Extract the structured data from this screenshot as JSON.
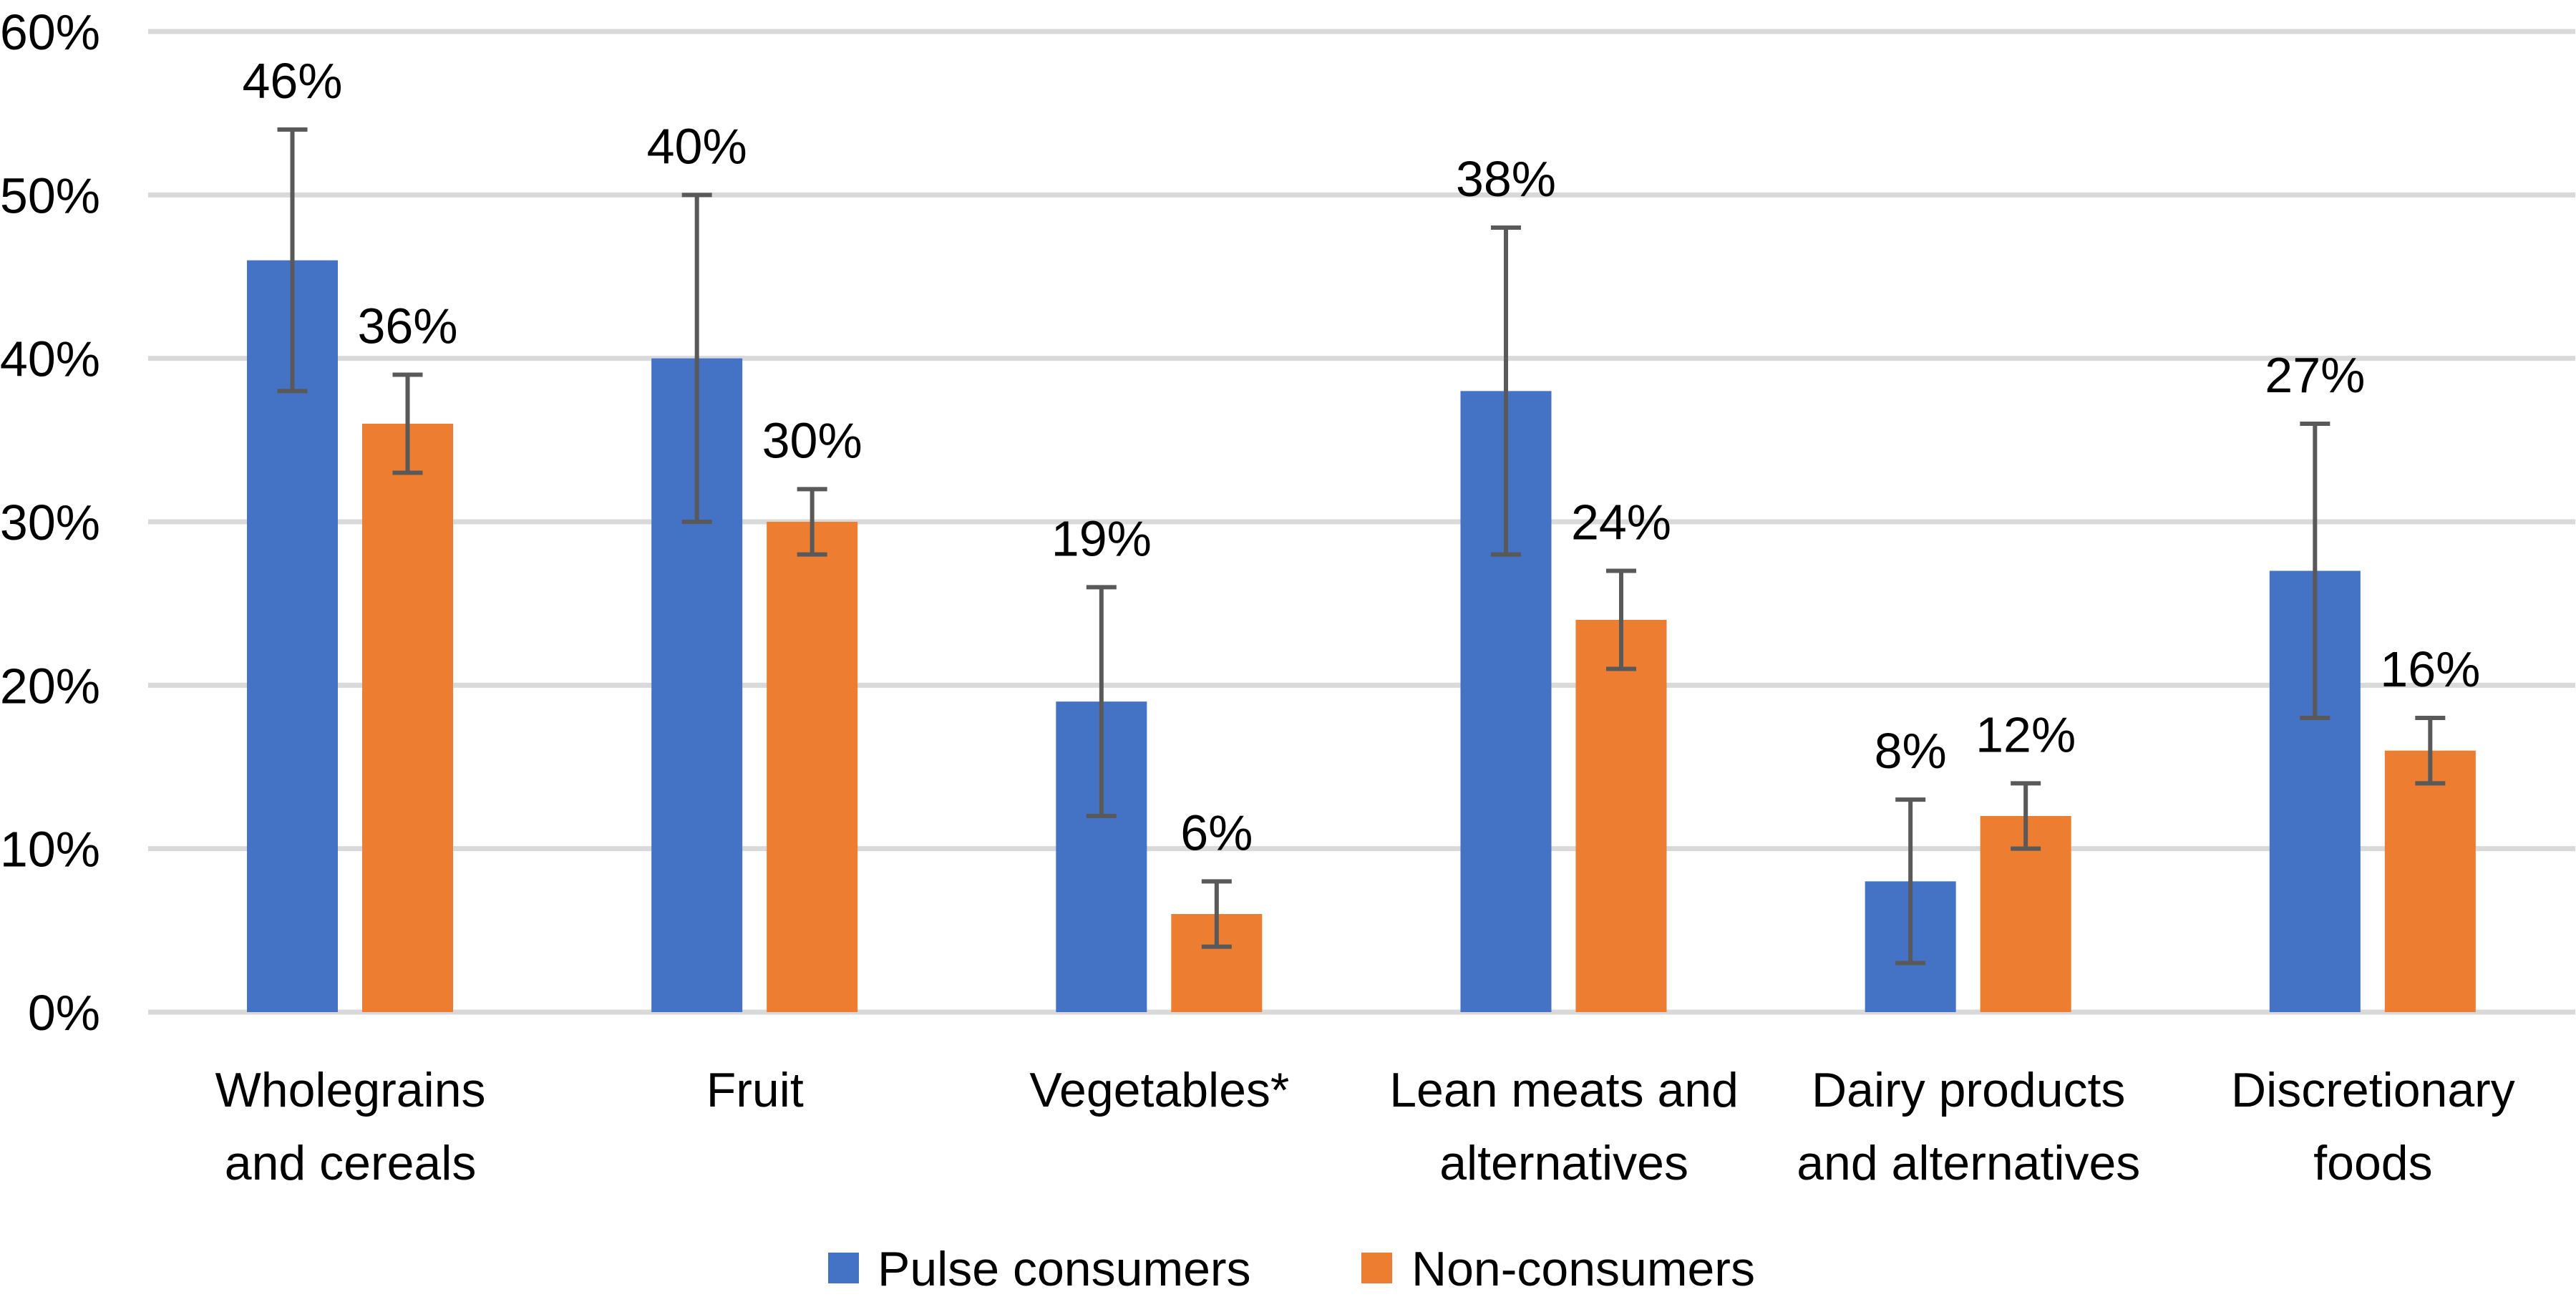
{
  "chart_data": {
    "type": "bar",
    "title": "",
    "xlabel": "",
    "ylabel": "",
    "ylim": [
      0,
      60
    ],
    "yticks": [
      "0%",
      "10%",
      "20%",
      "30%",
      "40%",
      "50%",
      "60%"
    ],
    "grid": true,
    "legend_position": "bottom",
    "categories": [
      [
        "Wholegrains",
        "and cereals"
      ],
      [
        "Fruit"
      ],
      [
        "Vegetables*"
      ],
      [
        "Lean meats and",
        "alternatives"
      ],
      [
        "Dairy products",
        "and alternatives"
      ],
      [
        "Discretionary",
        "foods"
      ]
    ],
    "series": [
      {
        "name": "Pulse consumers",
        "color": "#4472C4",
        "values": [
          46,
          40,
          19,
          38,
          8,
          27
        ],
        "labels": [
          "46%",
          "40%",
          "19%",
          "38%",
          "8%",
          "27%"
        ],
        "error_low": [
          38,
          30,
          12,
          28,
          3,
          18
        ],
        "error_high": [
          54,
          50,
          26,
          48,
          13,
          36
        ]
      },
      {
        "name": "Non-consumers",
        "color": "#ED7D31",
        "values": [
          36,
          30,
          6,
          24,
          12,
          16
        ],
        "labels": [
          "36%",
          "30%",
          "6%",
          "24%",
          "12%",
          "16%"
        ],
        "error_low": [
          33,
          28,
          4,
          21,
          10,
          14
        ],
        "error_high": [
          39,
          32,
          8,
          27,
          14,
          18
        ]
      }
    ]
  },
  "legend": {
    "items": [
      {
        "label": "Pulse consumers",
        "color": "#4472C4"
      },
      {
        "label": "Non-consumers",
        "color": "#ED7D31"
      }
    ]
  },
  "style": {
    "gridline_color": "#D9D9D9",
    "error_bar_color": "#595959"
  }
}
